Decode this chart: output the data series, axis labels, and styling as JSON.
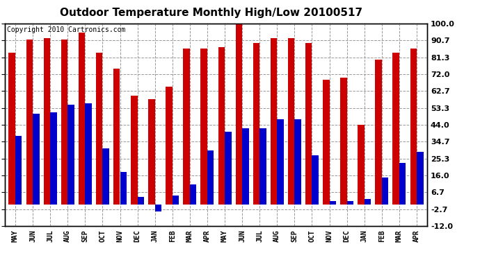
{
  "title": "Outdoor Temperature Monthly High/Low 20100517",
  "copyright": "Copyright 2010 Cartronics.com",
  "months": [
    "MAY",
    "JUN",
    "JUL",
    "AUG",
    "SEP",
    "OCT",
    "NOV",
    "DEC",
    "JAN",
    "FEB",
    "MAR",
    "APR",
    "MAY",
    "JUN",
    "JUL",
    "AUG",
    "SEP",
    "OCT",
    "NOV",
    "DEC",
    "JAN",
    "FEB",
    "MAR",
    "APR"
  ],
  "highs": [
    84,
    91,
    92,
    91,
    95,
    84,
    75,
    60,
    58,
    65,
    86,
    86,
    87,
    101,
    89,
    92,
    92,
    89,
    69,
    70,
    44,
    80,
    84,
    86
  ],
  "lows": [
    38,
    50,
    51,
    55,
    56,
    31,
    18,
    4,
    -4,
    5,
    11,
    30,
    40,
    42,
    42,
    47,
    47,
    27,
    2,
    2,
    3,
    15,
    23,
    29
  ],
  "bar_color_high": "#cc0000",
  "bar_color_low": "#0000cc",
  "background_color": "#ffffff",
  "plot_bg_color": "#ffffff",
  "grid_color": "#999999",
  "yticks": [
    100.0,
    90.7,
    81.3,
    72.0,
    62.7,
    53.3,
    44.0,
    34.7,
    25.3,
    16.0,
    6.7,
    -2.7,
    -12.0
  ],
  "ylim": [
    -12.0,
    100.0
  ],
  "bar_width": 0.38,
  "title_fontsize": 11,
  "copyright_fontsize": 7,
  "tick_fontsize": 7,
  "axis_tick_fontsize": 8
}
